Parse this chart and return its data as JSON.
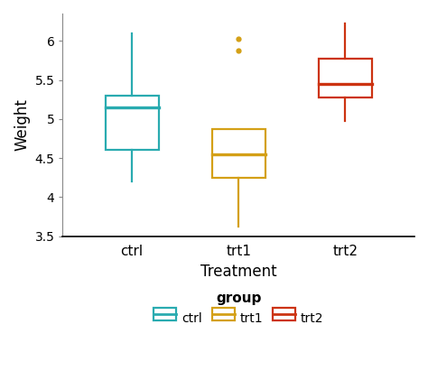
{
  "groups": [
    "ctrl",
    "trt1",
    "trt2"
  ],
  "colors": [
    "#29ABB0",
    "#D4A017",
    "#CC3311"
  ],
  "ctrl": {
    "q1": 4.6,
    "median": 5.15,
    "q3": 5.3,
    "whisker_low": 4.2,
    "whisker_high": 6.1,
    "outliers": []
  },
  "trt1": {
    "q1": 4.25,
    "median": 4.55,
    "q3": 4.87,
    "whisker_low": 3.62,
    "whisker_high": 4.87,
    "outliers": [
      5.88,
      6.03
    ]
  },
  "trt2": {
    "q1": 5.27,
    "median": 5.45,
    "q3": 5.77,
    "whisker_low": 4.97,
    "whisker_high": 6.22,
    "outliers": []
  },
  "xlabel": "Treatment",
  "ylabel": "Weight",
  "ylim": [
    3.5,
    6.35
  ],
  "yticks": [
    3.5,
    4.0,
    4.5,
    5.0,
    5.5,
    6.0
  ],
  "background_color": "#ffffff",
  "box_width": 0.5,
  "linewidth": 1.6,
  "median_linewidth": 2.4,
  "legend_label": "group",
  "legend_items": [
    "ctrl",
    "trt1",
    "trt2"
  ]
}
